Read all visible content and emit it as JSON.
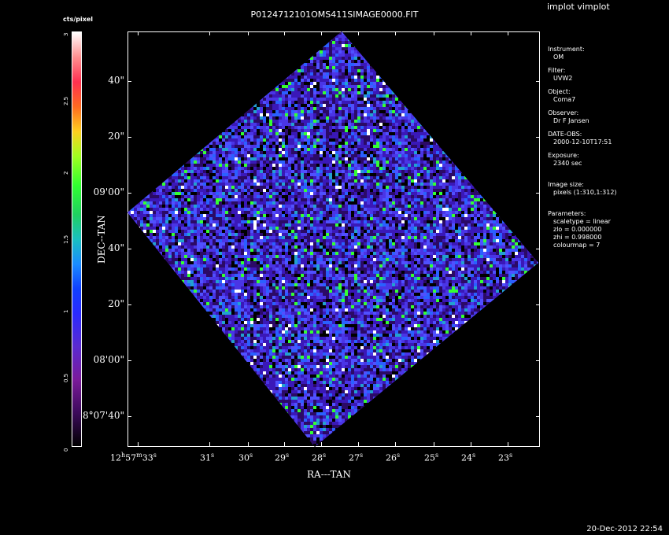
{
  "window": {
    "program_label": "implot vimplot",
    "title": "P0124712101OMS411SIMAGE0000.FIT",
    "date": "20-Dec-2012 22:54"
  },
  "colorbar": {
    "label": "cts/pixel",
    "ticks": [
      "0",
      "0.5",
      "1",
      "1.5",
      "2",
      "2.5",
      "3"
    ],
    "range": [
      0,
      3
    ]
  },
  "axes": {
    "xlabel": "RA---TAN",
    "ylabel": "DEC--TAN",
    "y_ticks": [
      "40\"",
      "20\"",
      "09'00\"",
      "40\"",
      "20\"",
      "08'00\"",
      "8°07'40\""
    ],
    "x_ticks": [
      "12h57m33s",
      "31s",
      "30s",
      "29s",
      "28s",
      "27s",
      "26s",
      "25s",
      "24s",
      "23s"
    ]
  },
  "info_panel": {
    "instrument_label": "Instrument:",
    "instrument": "OM",
    "filter_label": "Filter:",
    "filter": "UVW2",
    "object_label": "Object:",
    "object": "Coma7",
    "observer_label": "Observer:",
    "observer": "Dr F Jansen",
    "dateobs_label": "DATE-OBS:",
    "dateobs": "2000-12-10T17:51",
    "exposure_label": "Exposure:",
    "exposure": "2340 sec",
    "imagesize_label": "Image size:",
    "imagesize": "pixels (1:310,1:312)",
    "params_label": "Parameters:",
    "scaletype": "scaletype = linear",
    "zlo": "zlo = 0.000000",
    "zhi": "zhi = 0.998000",
    "colourmap": "colourmap =   7"
  },
  "colors": {
    "noise_palette": [
      "#000000",
      "#2b0a66",
      "#3a18b8",
      "#4a35e6",
      "#5050ff",
      "#2a60ff",
      "#22a0d0",
      "#33ff33",
      "#ffffff"
    ]
  }
}
